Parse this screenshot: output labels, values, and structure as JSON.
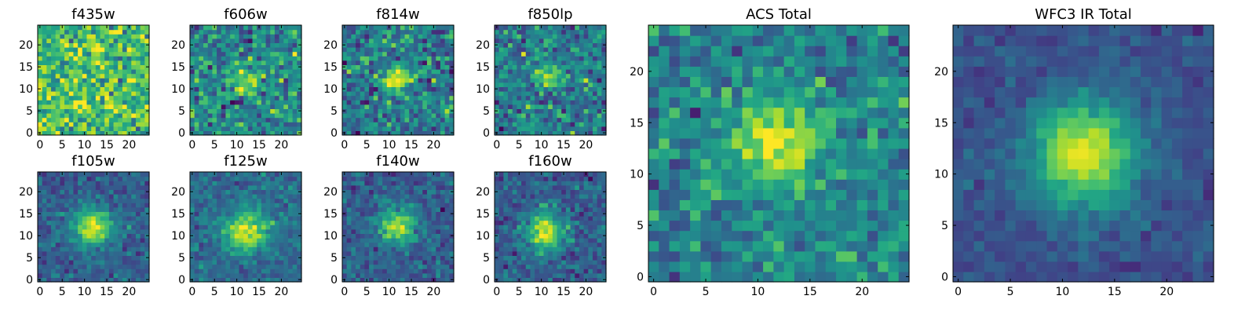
{
  "chart_data": [
    {
      "type": "heatmap",
      "title": "f435w",
      "xticks": [
        "0",
        "5",
        "10",
        "15",
        "20"
      ],
      "yticks": [
        "0",
        "5",
        "10",
        "15",
        "20"
      ],
      "xlim": [
        -0.5,
        24.5
      ],
      "ylim": [
        -0.5,
        24.5
      ],
      "colormap": "viridis",
      "image_size": [
        25,
        25
      ],
      "source_profile": {
        "center": [
          12,
          12
        ],
        "peak": 0.0,
        "sigma": 3.0,
        "background": 0.7,
        "noise": 0.17
      }
    },
    {
      "type": "heatmap",
      "title": "f606w",
      "xticks": [
        "0",
        "5",
        "10",
        "15",
        "20"
      ],
      "yticks": [
        "0",
        "5",
        "10",
        "15",
        "20"
      ],
      "xlim": [
        -0.5,
        24.5
      ],
      "ylim": [
        -0.5,
        24.5
      ],
      "colormap": "viridis",
      "image_size": [
        25,
        25
      ],
      "source_profile": {
        "center": [
          12,
          12
        ],
        "peak": 0.45,
        "sigma": 2.2,
        "background": 0.45,
        "noise": 0.15
      }
    },
    {
      "type": "heatmap",
      "title": "f814w",
      "xticks": [
        "0",
        "5",
        "10",
        "15",
        "20"
      ],
      "yticks": [
        "0",
        "5",
        "10",
        "15",
        "20"
      ],
      "xlim": [
        -0.5,
        24.5
      ],
      "ylim": [
        -0.5,
        24.5
      ],
      "colormap": "viridis",
      "image_size": [
        25,
        25
      ],
      "source_profile": {
        "center": [
          12,
          12
        ],
        "peak": 0.5,
        "sigma": 2.2,
        "background": 0.42,
        "noise": 0.15
      }
    },
    {
      "type": "heatmap",
      "title": "f850lp",
      "xticks": [
        "0",
        "5",
        "10",
        "15",
        "20"
      ],
      "yticks": [
        "0",
        "5",
        "10",
        "15",
        "20"
      ],
      "xlim": [
        -0.5,
        24.5
      ],
      "ylim": [
        -0.5,
        24.5
      ],
      "colormap": "viridis",
      "image_size": [
        25,
        25
      ],
      "source_profile": {
        "center": [
          12,
          13
        ],
        "peak": 0.4,
        "sigma": 2.0,
        "background": 0.42,
        "noise": 0.15
      }
    },
    {
      "type": "heatmap",
      "title": "f105w",
      "xticks": [
        "0",
        "5",
        "10",
        "15",
        "20"
      ],
      "yticks": [
        "0",
        "5",
        "10",
        "15",
        "20"
      ],
      "xlim": [
        -0.5,
        24.5
      ],
      "ylim": [
        -0.5,
        24.5
      ],
      "colormap": "viridis",
      "image_size": [
        25,
        25
      ],
      "source_profile": {
        "center": [
          12,
          12
        ],
        "peak": 0.65,
        "sigma": 3.0,
        "background": 0.3,
        "noise": 0.08
      }
    },
    {
      "type": "heatmap",
      "title": "f125w",
      "xticks": [
        "0",
        "5",
        "10",
        "15",
        "20"
      ],
      "yticks": [
        "0",
        "5",
        "10",
        "15",
        "20"
      ],
      "xlim": [
        -0.5,
        24.5
      ],
      "ylim": [
        -0.5,
        24.5
      ],
      "colormap": "viridis",
      "image_size": [
        25,
        25
      ],
      "source_profile": {
        "center": [
          12,
          11
        ],
        "peak": 0.6,
        "sigma": 3.3,
        "background": 0.35,
        "noise": 0.08
      }
    },
    {
      "type": "heatmap",
      "title": "f140w",
      "xticks": [
        "0",
        "5",
        "10",
        "15",
        "20"
      ],
      "yticks": [
        "0",
        "5",
        "10",
        "15",
        "20"
      ],
      "xlim": [
        -0.5,
        24.5
      ],
      "ylim": [
        -0.5,
        24.5
      ],
      "colormap": "viridis",
      "image_size": [
        25,
        25
      ],
      "source_profile": {
        "center": [
          12,
          12
        ],
        "peak": 0.62,
        "sigma": 2.8,
        "background": 0.3,
        "noise": 0.09
      }
    },
    {
      "type": "heatmap",
      "title": "f160w",
      "xticks": [
        "0",
        "5",
        "10",
        "15",
        "20"
      ],
      "yticks": [
        "0",
        "5",
        "10",
        "15",
        "20"
      ],
      "xlim": [
        -0.5,
        24.5
      ],
      "ylim": [
        -0.5,
        24.5
      ],
      "colormap": "viridis",
      "image_size": [
        25,
        25
      ],
      "source_profile": {
        "center": [
          11,
          11
        ],
        "peak": 0.65,
        "sigma": 3.0,
        "background": 0.3,
        "noise": 0.09
      }
    },
    {
      "type": "heatmap",
      "title": "ACS Total",
      "xticks": [
        "0",
        "5",
        "10",
        "15",
        "20"
      ],
      "yticks": [
        "0",
        "5",
        "10",
        "15",
        "20"
      ],
      "xlim": [
        -0.5,
        24.5
      ],
      "ylim": [
        -0.5,
        24.5
      ],
      "colormap": "viridis",
      "image_size": [
        25,
        25
      ],
      "source_profile": {
        "center": [
          12,
          13
        ],
        "peak": 0.5,
        "sigma": 2.8,
        "background": 0.45,
        "noise": 0.12
      }
    },
    {
      "type": "heatmap",
      "title": "WFC3 IR Total",
      "xticks": [
        "0",
        "5",
        "10",
        "15",
        "20"
      ],
      "yticks": [
        "0",
        "5",
        "10",
        "15",
        "20"
      ],
      "xlim": [
        -0.5,
        24.5
      ],
      "ylim": [
        -0.5,
        24.5
      ],
      "colormap": "viridis",
      "image_size": [
        25,
        25
      ],
      "source_profile": {
        "center": [
          12,
          12
        ],
        "peak": 0.7,
        "sigma": 3.6,
        "background": 0.25,
        "noise": 0.05
      }
    }
  ]
}
